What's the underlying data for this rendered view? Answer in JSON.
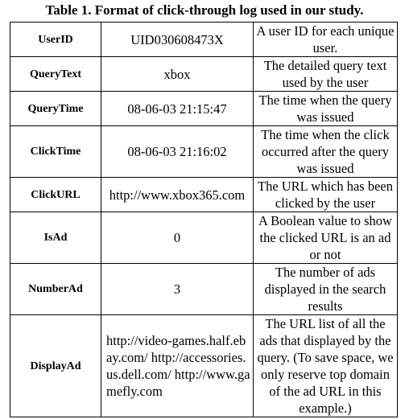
{
  "caption": "Table 1. Format of click-through log used in our study.",
  "rows": [
    {
      "field": "UserID",
      "example": "UID030608473X",
      "description": "A user ID for each unique user."
    },
    {
      "field": "QueryText",
      "example": "xbox",
      "description": "The detailed query text used by the user"
    },
    {
      "field": "QueryTime",
      "example": "08-06-03 21:15:47",
      "description": "The time when the query was issued"
    },
    {
      "field": "ClickTime",
      "example": "08-06-03 21:16:02",
      "description": "The time when the click occurred after the query was issued"
    },
    {
      "field": "ClickURL",
      "example": "http://www.xbox365.com",
      "description": "The URL which has been clicked by the user"
    },
    {
      "field": "IsAd",
      "example": "0",
      "description": "A Boolean value to show the clicked URL is an ad or not"
    },
    {
      "field": "NumberAd",
      "example": "3",
      "description": "The number of ads displayed in the search results"
    },
    {
      "field": "DisplayAd",
      "example": "http://video-games.half.ebay.com/ http://accessories.us.dell.com/ http://www.gamefly.com",
      "description": "The URL list of all the ads that displayed by the query. (To save space, we only reserve top domain of the ad URL in this example.)"
    }
  ]
}
